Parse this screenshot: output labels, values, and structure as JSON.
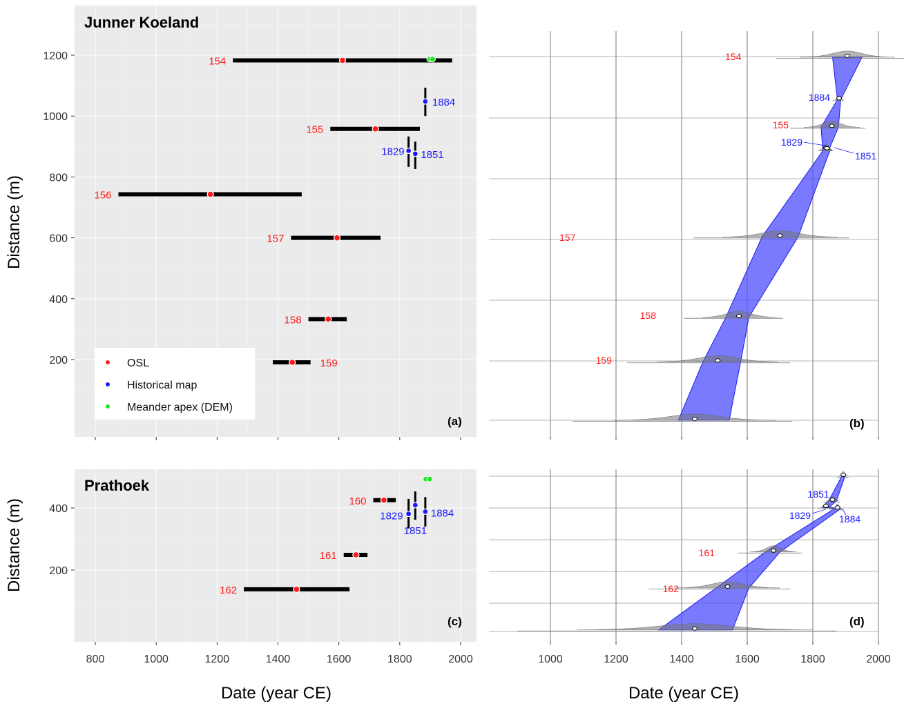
{
  "colors": {
    "osl": "#ff1a1a",
    "historical_map": "#1a1aff",
    "meander_apex": "#22e622",
    "band_fill": "#4d4dff",
    "band_stroke": "#1a1aee",
    "panel_bg": "#ebebeb",
    "grid_major": "#ffffff"
  },
  "legend": {
    "osl": "OSL",
    "historical_map": "Historical map",
    "meander_apex": "Meander apex (DEM)"
  },
  "xlabel_left": "Date (year CE)",
  "xlabel_right": "Date (year CE)",
  "ylabel_top": "Distance (m)",
  "ylabel_bottom": "Distance (m)",
  "chart_data": [
    {
      "panel": "(a)",
      "type": "scatter",
      "title": "Junner Koeland",
      "xlim": [
        740,
        2010
      ],
      "ylim": [
        -40,
        1330
      ],
      "xticks": [
        800,
        1000,
        1200,
        1400,
        1600,
        1800,
        2000
      ],
      "yticks": [
        200,
        400,
        600,
        800,
        1000,
        1200
      ],
      "osl": [
        {
          "label": "154",
          "x": 1612,
          "y": 1183,
          "xmin": 1252,
          "xmax": 1972
        },
        {
          "label": "155",
          "x": 1720,
          "y": 958,
          "xmin": 1572,
          "xmax": 1866
        },
        {
          "label": "156",
          "x": 1178,
          "y": 743,
          "xmin": 876,
          "xmax": 1478
        },
        {
          "label": "157",
          "x": 1594,
          "y": 600,
          "xmin": 1443,
          "xmax": 1737
        },
        {
          "label": "158",
          "x": 1565,
          "y": 333,
          "xmin": 1500,
          "xmax": 1626
        },
        {
          "label": "159",
          "x": 1447,
          "y": 191,
          "xmin": 1383,
          "xmax": 1507
        }
      ],
      "historical_map": [
        {
          "label": "1884",
          "x": 1884,
          "y": 1048,
          "ymin": 1000,
          "ymax": 1093
        },
        {
          "label": "1829",
          "x": 1829,
          "y": 886,
          "ymin": 833,
          "ymax": 933
        },
        {
          "label": "1851",
          "x": 1851,
          "y": 876,
          "ymin": 826,
          "ymax": 916
        }
      ],
      "meander_apex": [
        {
          "x": 1898,
          "y": 1187
        },
        {
          "x": 1908,
          "y": 1187
        }
      ]
    },
    {
      "panel": "(b)",
      "type": "area",
      "xlim": [
        820,
        2000
      ],
      "xticks": [
        1000,
        1200,
        1400,
        1600,
        1800,
        2000
      ],
      "samples": [
        {
          "label": "154",
          "kind": "osl",
          "date": 1905,
          "y": 1198,
          "lo": 1860,
          "hi": 1950
        },
        {
          "label": "1884",
          "kind": "map",
          "date": 1880,
          "y": 1058,
          "lo": 1875,
          "hi": 1885
        },
        {
          "label": "155",
          "kind": "osl",
          "date": 1858,
          "y": 967,
          "lo": 1825,
          "hi": 1878
        },
        {
          "label": "1829",
          "kind": "map",
          "date": 1840,
          "y": 895,
          "lo": 1830,
          "hi": 1850
        },
        {
          "label": "1851",
          "kind": "map",
          "date": 1843,
          "y": 893,
          "lo": 1833,
          "hi": 1853
        },
        {
          "label": "157",
          "kind": "osl",
          "date": 1700,
          "y": 605,
          "lo": 1645,
          "hi": 1755
        },
        {
          "label": "158",
          "kind": "osl",
          "date": 1575,
          "y": 340,
          "lo": 1535,
          "hi": 1605
        },
        {
          "label": "159",
          "kind": "osl",
          "date": 1510,
          "y": 193,
          "lo": 1465,
          "hi": 1580
        },
        {
          "label": "",
          "kind": "osl",
          "date": 1440,
          "y": 0,
          "lo": 1390,
          "hi": 1545
        }
      ]
    },
    {
      "panel": "(c)",
      "type": "scatter",
      "title": "Prathoek",
      "xlim": [
        740,
        2010
      ],
      "ylim": [
        -60,
        560
      ],
      "xticks": [
        800,
        1000,
        1200,
        1400,
        1600,
        1800,
        2000
      ],
      "yticks": [
        200,
        400
      ],
      "osl": [
        {
          "label": "160",
          "x": 1748,
          "y": 425,
          "xmin": 1713,
          "xmax": 1787
        },
        {
          "label": "161",
          "x": 1656,
          "y": 249,
          "xmin": 1616,
          "xmax": 1694
        },
        {
          "label": "162",
          "x": 1461,
          "y": 138,
          "xmin": 1288,
          "xmax": 1635
        }
      ],
      "historical_map": [
        {
          "label": "1829",
          "x": 1829,
          "y": 381,
          "ymin": 334,
          "ymax": 429
        },
        {
          "label": "1851",
          "x": 1851,
          "y": 409,
          "ymin": 362,
          "ymax": 453
        },
        {
          "label": "1884",
          "x": 1884,
          "y": 388,
          "ymin": 340,
          "ymax": 435
        }
      ],
      "meander_apex": [
        {
          "x": 1886,
          "y": 493
        },
        {
          "x": 1898,
          "y": 493
        }
      ]
    },
    {
      "panel": "(d)",
      "type": "area",
      "xlim": [
        820,
        2000
      ],
      "xticks": [
        1000,
        1200,
        1400,
        1600,
        1800,
        2000
      ],
      "samples": [
        {
          "label": "",
          "kind": "apex",
          "date": 1893,
          "y": 500,
          "lo": 1888,
          "hi": 1898
        },
        {
          "label": "1851",
          "kind": "map",
          "date": 1860,
          "y": 420,
          "lo": 1848,
          "hi": 1872
        },
        {
          "label": "1829",
          "kind": "map",
          "date": 1840,
          "y": 400,
          "lo": 1830,
          "hi": 1850
        },
        {
          "label": "1884",
          "kind": "map",
          "date": 1875,
          "y": 395,
          "lo": 1865,
          "hi": 1885
        },
        {
          "label": "161",
          "kind": "osl",
          "date": 1680,
          "y": 256,
          "lo": 1655,
          "hi": 1700
        },
        {
          "label": "162",
          "kind": "osl",
          "date": 1540,
          "y": 140,
          "lo": 1505,
          "hi": 1605
        },
        {
          "label": "",
          "kind": "osl",
          "date": 1440,
          "y": 5,
          "lo": 1330,
          "hi": 1555
        }
      ]
    }
  ]
}
